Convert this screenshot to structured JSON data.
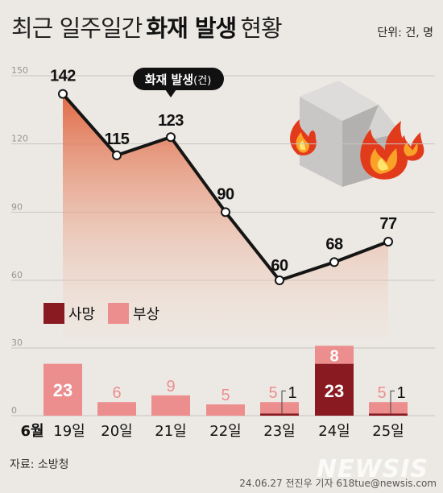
{
  "title": {
    "light": "최근 일주일간",
    "bold": "화재 발생",
    "tail": "현황"
  },
  "unit": "단위: 건, 명",
  "source": "자료: 소방청",
  "credit": "24.06.27 전진우 기자 618tue@newsis.com",
  "watermark": "NEWSIS",
  "colors": {
    "line": "#151515",
    "area_top": "#e06a45",
    "area_bottom": "#f4ddd0",
    "death": "#8a1a22",
    "injury": "#ec8e8e",
    "grid": "#c9c4bf",
    "background": "#ece9e4"
  },
  "chart_data": [
    {
      "type": "line",
      "series": [
        {
          "name": "화재 발생(건)",
          "values": [
            142,
            115,
            123,
            90,
            60,
            68,
            77
          ]
        }
      ],
      "categories": [
        "19일",
        "20일",
        "21일",
        "22일",
        "23일",
        "24일",
        "25일"
      ],
      "callout": {
        "bold": "화재 발생",
        "light": "(건)"
      },
      "yticks": [
        150,
        120,
        90,
        60
      ],
      "ylim": [
        60,
        150
      ]
    },
    {
      "type": "bar",
      "stacked": true,
      "categories": [
        "19일",
        "20일",
        "21일",
        "22일",
        "23일",
        "24일",
        "25일"
      ],
      "month_label": "6월",
      "series": [
        {
          "name": "사망",
          "values": [
            0,
            0,
            0,
            0,
            1,
            23,
            1
          ]
        },
        {
          "name": "부상",
          "values": [
            23,
            6,
            9,
            5,
            5,
            8,
            5
          ]
        }
      ],
      "yticks": [
        30,
        0
      ],
      "ylim": [
        0,
        30
      ],
      "legend": [
        "사망",
        "부상"
      ],
      "legend_position": "top-left"
    }
  ],
  "icons": {
    "illustration": "house-fire-icon"
  }
}
